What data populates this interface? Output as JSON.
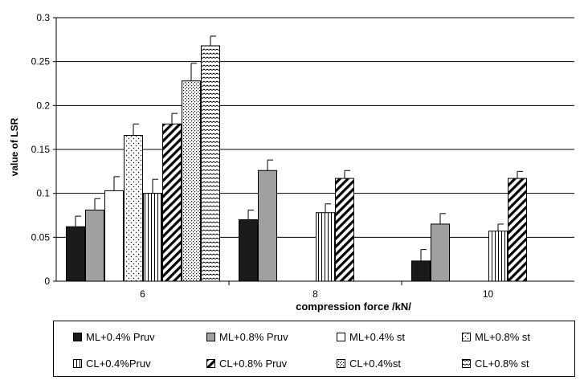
{
  "chart_data": {
    "type": "bar",
    "xlabel": "compression force /kN/",
    "ylabel": "value of LSR",
    "ylim": [
      0,
      0.3
    ],
    "yticks": [
      0,
      0.05,
      0.1,
      0.15,
      0.2,
      0.25,
      0.3
    ],
    "ytick_labels": [
      "0",
      "0.05",
      "0.1",
      "0.15",
      "0.2",
      "0.25",
      "0.3"
    ],
    "grid": "horizontal",
    "legend_position": "bottom",
    "categories": [
      "6",
      "8",
      "10"
    ],
    "series": [
      {
        "name": "ML+0.4% Pruv",
        "pattern": "solid-black",
        "values": [
          0.062,
          0.07,
          0.023
        ],
        "errors": [
          0.012,
          0.011,
          0.013
        ]
      },
      {
        "name": "ML+0.8% Pruv",
        "pattern": "solid-gray",
        "values": [
          0.081,
          0.126,
          0.065
        ],
        "errors": [
          0.013,
          0.012,
          0.012
        ]
      },
      {
        "name": "ML+0.4% st",
        "pattern": "white",
        "values": [
          0.103,
          null,
          null
        ],
        "errors": [
          0.016,
          null,
          null
        ]
      },
      {
        "name": "ML+0.8% st",
        "pattern": "dots",
        "values": [
          0.166,
          null,
          null
        ],
        "errors": [
          0.013,
          null,
          null
        ]
      },
      {
        "name": "CL+0.4%Pruv",
        "pattern": "vertical-lines",
        "values": [
          0.1,
          0.078,
          0.057
        ],
        "errors": [
          0.016,
          0.01,
          0.008
        ]
      },
      {
        "name": "CL+0.8% Pruv",
        "pattern": "diagonal-hatch",
        "values": [
          0.179,
          0.117,
          0.117
        ],
        "errors": [
          0.012,
          0.009,
          0.008
        ]
      },
      {
        "name": "CL+0.4%st",
        "pattern": "dense-dots",
        "values": [
          0.228,
          null,
          null
        ],
        "errors": [
          0.02,
          null,
          null
        ]
      },
      {
        "name": "CL+0.8% st",
        "pattern": "waves",
        "values": [
          0.268,
          null,
          null
        ],
        "errors": [
          0.011,
          null,
          null
        ]
      }
    ]
  }
}
